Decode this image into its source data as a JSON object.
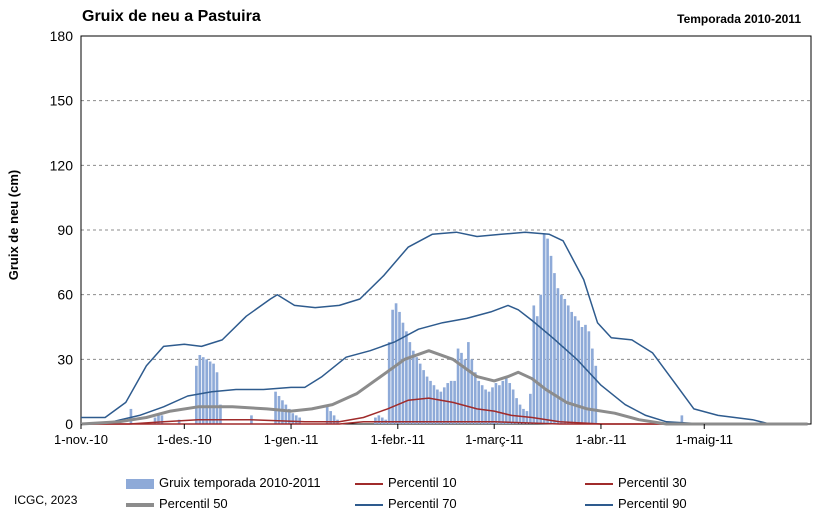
{
  "header": {
    "title": "Gruix de neu a Pastuira",
    "season": "Temporada 2010-2011"
  },
  "footer": {
    "credit": "ICGC, 2023"
  },
  "colors": {
    "bars": "#8eaad8",
    "p10": "#a02b2b",
    "p30": "#a02b2b",
    "p50": "#8c8c8c",
    "p70": "#2e5b8e",
    "p90": "#2e5b8e",
    "grid": "#8c8c8c"
  },
  "chart_data": {
    "type": "bar",
    "title": "Gruix de neu a Pastuira",
    "ylabel": "Gruix de neu (cm)",
    "xlabel": "",
    "ylim": [
      0,
      180
    ],
    "yticks": [
      "0",
      "30",
      "60",
      "90",
      "120",
      "150",
      "180"
    ],
    "x_start": "2010-11-01",
    "x_end": "2011-05-31",
    "xticks": [
      {
        "date": "2010-11-01",
        "label": "1-nov.-10"
      },
      {
        "date": "2010-12-01",
        "label": "1-des.-10"
      },
      {
        "date": "2011-01-01",
        "label": "1-gen.-11"
      },
      {
        "date": "2011-02-01",
        "label": "1-febr.-11"
      },
      {
        "date": "2011-03-01",
        "label": "1-març-11"
      },
      {
        "date": "2011-04-01",
        "label": "1-abr.-11"
      },
      {
        "date": "2011-05-01",
        "label": "1-maig-11"
      }
    ],
    "grid": true,
    "legend_position": "bottom",
    "bars": {
      "name": "Gruix temporada 2010-2011",
      "points": [
        [
          "2010-11-15",
          7
        ],
        [
          "2010-11-22",
          3
        ],
        [
          "2010-11-23",
          4
        ],
        [
          "2010-11-24",
          4
        ],
        [
          "2010-11-29",
          2
        ],
        [
          "2010-12-04",
          27
        ],
        [
          "2010-12-05",
          32
        ],
        [
          "2010-12-06",
          31
        ],
        [
          "2010-12-07",
          30
        ],
        [
          "2010-12-08",
          29
        ],
        [
          "2010-12-09",
          28
        ],
        [
          "2010-12-10",
          24
        ],
        [
          "2010-12-11",
          9
        ],
        [
          "2010-12-20",
          4
        ],
        [
          "2010-12-27",
          15
        ],
        [
          "2010-12-28",
          13
        ],
        [
          "2010-12-29",
          11
        ],
        [
          "2010-12-30",
          9
        ],
        [
          "2010-12-31",
          7
        ],
        [
          "2011-01-01",
          5
        ],
        [
          "2011-01-02",
          4
        ],
        [
          "2011-01-03",
          3
        ],
        [
          "2011-01-11",
          8
        ],
        [
          "2011-01-12",
          6
        ],
        [
          "2011-01-13",
          4
        ],
        [
          "2011-01-14",
          2
        ],
        [
          "2011-01-25",
          3
        ],
        [
          "2011-01-26",
          4
        ],
        [
          "2011-01-27",
          3
        ],
        [
          "2011-01-28",
          2
        ],
        [
          "2011-01-29",
          38
        ],
        [
          "2011-01-30",
          53
        ],
        [
          "2011-01-31",
          56
        ],
        [
          "2011-02-01",
          52
        ],
        [
          "2011-02-02",
          47
        ],
        [
          "2011-02-03",
          43
        ],
        [
          "2011-02-04",
          38
        ],
        [
          "2011-02-05",
          34
        ],
        [
          "2011-02-06",
          31
        ],
        [
          "2011-02-07",
          28
        ],
        [
          "2011-02-08",
          25
        ],
        [
          "2011-02-09",
          22
        ],
        [
          "2011-02-10",
          20
        ],
        [
          "2011-02-11",
          18
        ],
        [
          "2011-02-12",
          16
        ],
        [
          "2011-02-13",
          15
        ],
        [
          "2011-02-14",
          17
        ],
        [
          "2011-02-15",
          19
        ],
        [
          "2011-02-16",
          20
        ],
        [
          "2011-02-17",
          20
        ],
        [
          "2011-02-18",
          35
        ],
        [
          "2011-02-19",
          33
        ],
        [
          "2011-02-20",
          30
        ],
        [
          "2011-02-21",
          38
        ],
        [
          "2011-02-22",
          30
        ],
        [
          "2011-02-23",
          24
        ],
        [
          "2011-02-24",
          20
        ],
        [
          "2011-02-25",
          18
        ],
        [
          "2011-02-26",
          16
        ],
        [
          "2011-02-27",
          15
        ],
        [
          "2011-02-28",
          17
        ],
        [
          "2011-03-01",
          19
        ],
        [
          "2011-03-02",
          18
        ],
        [
          "2011-03-03",
          20
        ],
        [
          "2011-03-04",
          22
        ],
        [
          "2011-03-05",
          19
        ],
        [
          "2011-03-06",
          16
        ],
        [
          "2011-03-07",
          12
        ],
        [
          "2011-03-08",
          9
        ],
        [
          "2011-03-09",
          7
        ],
        [
          "2011-03-10",
          6
        ],
        [
          "2011-03-11",
          14
        ],
        [
          "2011-03-12",
          55
        ],
        [
          "2011-03-13",
          50
        ],
        [
          "2011-03-14",
          60
        ],
        [
          "2011-03-15",
          88
        ],
        [
          "2011-03-16",
          86
        ],
        [
          "2011-03-17",
          78
        ],
        [
          "2011-03-18",
          70
        ],
        [
          "2011-03-19",
          63
        ],
        [
          "2011-03-20",
          60
        ],
        [
          "2011-03-21",
          58
        ],
        [
          "2011-03-22",
          55
        ],
        [
          "2011-03-23",
          52
        ],
        [
          "2011-03-24",
          50
        ],
        [
          "2011-03-25",
          48
        ],
        [
          "2011-03-26",
          45
        ],
        [
          "2011-03-27",
          46
        ],
        [
          "2011-03-28",
          43
        ],
        [
          "2011-03-29",
          35
        ],
        [
          "2011-03-30",
          27
        ],
        [
          "2011-04-24",
          4
        ]
      ]
    },
    "series": [
      {
        "name": "Percentil 10",
        "points": [
          [
            "2010-11-01",
            0
          ],
          [
            "2011-01-15",
            0
          ],
          [
            "2011-01-22",
            1
          ],
          [
            "2011-02-01",
            1
          ],
          [
            "2011-02-15",
            1
          ],
          [
            "2011-03-01",
            1
          ],
          [
            "2011-03-20",
            0
          ],
          [
            "2011-05-31",
            0
          ]
        ]
      },
      {
        "name": "Percentil 30",
        "points": [
          [
            "2010-11-01",
            0
          ],
          [
            "2010-11-15",
            0
          ],
          [
            "2010-11-25",
            1
          ],
          [
            "2010-12-05",
            2
          ],
          [
            "2010-12-20",
            2
          ],
          [
            "2011-01-05",
            1
          ],
          [
            "2011-01-15",
            1
          ],
          [
            "2011-01-22",
            3
          ],
          [
            "2011-01-29",
            7
          ],
          [
            "2011-02-04",
            11
          ],
          [
            "2011-02-10",
            12
          ],
          [
            "2011-02-17",
            10
          ],
          [
            "2011-02-24",
            7
          ],
          [
            "2011-03-01",
            6
          ],
          [
            "2011-03-06",
            4
          ],
          [
            "2011-03-12",
            3
          ],
          [
            "2011-03-20",
            1
          ],
          [
            "2011-04-01",
            0
          ],
          [
            "2011-05-31",
            0
          ]
        ]
      },
      {
        "name": "Percentil 50",
        "points": [
          [
            "2010-11-01",
            0
          ],
          [
            "2010-11-12",
            1
          ],
          [
            "2010-11-20",
            3
          ],
          [
            "2010-11-27",
            6
          ],
          [
            "2010-12-05",
            8
          ],
          [
            "2010-12-15",
            8
          ],
          [
            "2010-12-25",
            7
          ],
          [
            "2011-01-01",
            6
          ],
          [
            "2011-01-07",
            7
          ],
          [
            "2011-01-13",
            9
          ],
          [
            "2011-01-20",
            14
          ],
          [
            "2011-01-27",
            22
          ],
          [
            "2011-02-03",
            30
          ],
          [
            "2011-02-10",
            34
          ],
          [
            "2011-02-17",
            30
          ],
          [
            "2011-02-24",
            22
          ],
          [
            "2011-03-01",
            20
          ],
          [
            "2011-03-05",
            22
          ],
          [
            "2011-03-08",
            24
          ],
          [
            "2011-03-12",
            21
          ],
          [
            "2011-03-16",
            16
          ],
          [
            "2011-03-22",
            10
          ],
          [
            "2011-03-28",
            7
          ],
          [
            "2011-04-05",
            5
          ],
          [
            "2011-04-12",
            2
          ],
          [
            "2011-04-20",
            0
          ],
          [
            "2011-05-31",
            0
          ]
        ]
      },
      {
        "name": "Percentil 70",
        "points": [
          [
            "2010-11-01",
            0
          ],
          [
            "2010-11-10",
            1
          ],
          [
            "2010-11-18",
            4
          ],
          [
            "2010-11-25",
            8
          ],
          [
            "2010-12-02",
            13
          ],
          [
            "2010-12-09",
            15
          ],
          [
            "2010-12-16",
            16
          ],
          [
            "2010-12-24",
            16
          ],
          [
            "2011-01-01",
            17
          ],
          [
            "2011-01-05",
            17
          ],
          [
            "2011-01-10",
            22
          ],
          [
            "2011-01-17",
            31
          ],
          [
            "2011-01-24",
            34
          ],
          [
            "2011-01-31",
            38
          ],
          [
            "2011-02-07",
            44
          ],
          [
            "2011-02-14",
            47
          ],
          [
            "2011-02-21",
            49
          ],
          [
            "2011-02-28",
            52
          ],
          [
            "2011-03-05",
            55
          ],
          [
            "2011-03-08",
            53
          ],
          [
            "2011-03-12",
            48
          ],
          [
            "2011-03-18",
            40
          ],
          [
            "2011-03-25",
            30
          ],
          [
            "2011-04-01",
            18
          ],
          [
            "2011-04-08",
            9
          ],
          [
            "2011-04-14",
            4
          ],
          [
            "2011-04-20",
            1
          ],
          [
            "2011-05-01",
            0
          ],
          [
            "2011-05-31",
            0
          ]
        ]
      },
      {
        "name": "Percentil 90",
        "points": [
          [
            "2010-11-01",
            3
          ],
          [
            "2010-11-08",
            3
          ],
          [
            "2010-11-14",
            10
          ],
          [
            "2010-11-20",
            27
          ],
          [
            "2010-11-25",
            36
          ],
          [
            "2010-12-01",
            37
          ],
          [
            "2010-12-06",
            36
          ],
          [
            "2010-12-12",
            39
          ],
          [
            "2010-12-19",
            50
          ],
          [
            "2010-12-26",
            58
          ],
          [
            "2010-12-28",
            60
          ],
          [
            "2011-01-02",
            55
          ],
          [
            "2011-01-08",
            54
          ],
          [
            "2011-01-15",
            55
          ],
          [
            "2011-01-21",
            58
          ],
          [
            "2011-01-28",
            69
          ],
          [
            "2011-02-04",
            82
          ],
          [
            "2011-02-11",
            88
          ],
          [
            "2011-02-18",
            89
          ],
          [
            "2011-02-24",
            87
          ],
          [
            "2011-03-03",
            88
          ],
          [
            "2011-03-10",
            89
          ],
          [
            "2011-03-17",
            88
          ],
          [
            "2011-03-21",
            85
          ],
          [
            "2011-03-27",
            67
          ],
          [
            "2011-03-31",
            47
          ],
          [
            "2011-04-04",
            40
          ],
          [
            "2011-04-10",
            39
          ],
          [
            "2011-04-16",
            33
          ],
          [
            "2011-04-22",
            20
          ],
          [
            "2011-04-28",
            7
          ],
          [
            "2011-05-05",
            4
          ],
          [
            "2011-05-15",
            2
          ],
          [
            "2011-05-20",
            0
          ],
          [
            "2011-05-31",
            0
          ]
        ]
      }
    ]
  }
}
